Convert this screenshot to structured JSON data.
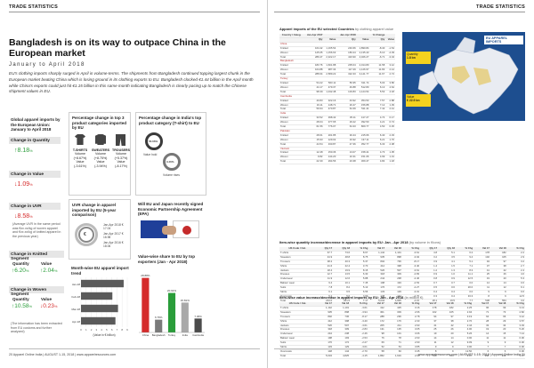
{
  "header": {
    "left": "TRADE STATISTICS",
    "right": "TRADE STATISTICS"
  },
  "article": {
    "headline": "Bangladesh is on its way to outpace China in the European market",
    "date": "January to April 2018",
    "lead": "EU's clothing imports sharply surged in April in volume-terms. The shipments from Bangladesh continued topping largest chunk in the European market beating China which is losing ground in its clothing exports to EU. Bangladesh clocked €1.44 billion in the April month while China's exports could just hit €1.15 billion in this same month indicating Bangladesh is clearly pacing up to match the Chinese shipment values in EU."
  },
  "left_panel": {
    "title": "Global apparel imports by the European Union: January to April 2018",
    "qty_label": "Change in Quantity",
    "qty_value": "8.18",
    "value_label": "Change in Value",
    "value_value": "1.09",
    "uvr_label": "Change in UVR",
    "uvr_value": "8.58",
    "uvr_note": "(Average UVR in the same period was €xx.xx/kg of woven apparel and €xx.xx/kg of knitted apparel in the previous year)",
    "knit_header": "Change in Knitted Segment",
    "knit_qty_label": "Quantity",
    "knit_value_label": "Value",
    "knit_qty": "6.20",
    "knit_value": "2.04",
    "woven_header": "Change in Woven Segment",
    "woven_qty_label": "Quantity",
    "woven_value_label": "Value",
    "woven_qty": "10.58",
    "woven_value": "0.23",
    "pct": "%",
    "source": "(The information has been extracted from EU customs and further analyzed)"
  },
  "cat_panel": {
    "title": "Percentage change in top 3 product categories imported by EU",
    "items": [
      {
        "name": "T-SHIRTS",
        "vol": "Volume (+8.67%)",
        "val": "Value (-3.61%)"
      },
      {
        "name": "SWEATERS",
        "vol": "Volume (+8.75%)",
        "val": "Value (-3.94%)"
      },
      {
        "name": "TROUSERS",
        "vol": "Volume (+5.37%)",
        "val": "Value (-8.17%)"
      }
    ]
  },
  "india_panel": {
    "title": "Percentage change in India's top product category (T-shirt) to EU",
    "value_label": "Value hold",
    "value_pct": "56.66%",
    "volume_label": "Volume rises",
    "volume_pct": "3.46%"
  },
  "uvr_panel": {
    "title": "UVR change in apparel imported by EU (5-year comparison)",
    "center": "€",
    "legend": [
      "Jan-Apr 2018 € 17.04",
      "Jan-Apr 2017 € 16.98",
      "Jan-Apr 2016 € 18.06"
    ]
  },
  "fta_panel": {
    "title": "Will EU and Japan recently signed Economic Partnership Agreement (EPA)"
  },
  "month_panel": {
    "title": "Month-wise EU apparel import trend",
    "xlabel": "(Value in € billion)",
    "months": [
      "Jan-18",
      "Feb-18",
      "Mar-18",
      "Apr-18"
    ],
    "values": [
      8.3,
      6.1,
      7.2,
      6.7
    ],
    "ticks": [
      "0",
      "1",
      "2",
      "3",
      "4",
      "5",
      "6",
      "7",
      "8",
      "9"
    ]
  },
  "share_panel": {
    "title": "Value-wise share to EU by top exporters (Jan - Apr 2018)",
    "categories": [
      "China",
      "Bangladesh",
      "Turkey",
      "India",
      "Cambodia"
    ],
    "values": [
      28.88,
      6.76,
      20.91,
      15.81,
      7.36
    ],
    "labels": [
      "28.88%",
      "6.76%",
      "20.91%",
      "15.81%",
      "7.36%"
    ]
  },
  "chart_data": [
    {
      "type": "bar",
      "title": "Month-wise EU apparel import trend",
      "categories": [
        "Jan-18",
        "Feb-18",
        "Mar-18",
        "Apr-18"
      ],
      "values": [
        8.3,
        6.1,
        7.2,
        6.7
      ],
      "xlabel": "(Value in € billion)",
      "ylabel": "",
      "xlim": [
        0,
        9
      ]
    },
    {
      "type": "bar",
      "title": "Value-wise share to EU by top exporters (Jan - Apr 2018)",
      "categories": [
        "China",
        "Bangladesh",
        "Turkey",
        "India",
        "Cambodia"
      ],
      "values": [
        28.88,
        6.76,
        20.91,
        15.81,
        7.36
      ],
      "ylabel": "",
      "ylim": [
        0,
        32
      ]
    }
  ],
  "table1": {
    "title": "Apparel imports of the EU selected Countries",
    "subtitle": "by clothing apparel value",
    "head1": [
      "Country / Categ.",
      "Jan-Apr 2017",
      "",
      "Jan-Apr 2018",
      "",
      "% Change",
      ""
    ],
    "head2": [
      "",
      "Qty",
      "Value",
      "Qty",
      "Value",
      "Qty",
      "Value"
    ],
    "rows": [
      [
        "China",
        "",
        "",
        "",
        "",
        "",
        ""
      ],
      [
        "Knitted",
        "164.42",
        "1,165.54",
        "240.66",
        "1,890.84",
        "-8.40",
        "-1.54"
      ],
      [
        "Woven",
        "125.05",
        "1,156.63",
        "183.24",
        "2,135.43",
        "-5.10",
        "-4.39"
      ],
      [
        "Total",
        "289.47",
        "2,322.17",
        "423.90",
        "4,026.27",
        "-6.71",
        "-3.04"
      ],
      [
        "Bangladesh",
        "",
        "",
        "",
        "",
        "",
        ""
      ],
      [
        "Knitted",
        "183.76",
        "1,601.88",
        "205.04",
        "2,014.80",
        "11.58",
        "3.12"
      ],
      [
        "Woven",
        "104.88",
        "987.34",
        "117.29",
        "1,126.97",
        "11.83",
        "2.14"
      ],
      [
        "Total",
        "288.64",
        "2,589.22",
        "322.33",
        "3,141.77",
        "11.67",
        "2.74"
      ],
      [
        "Turkey",
        "",
        "",
        "",
        "",
        "",
        ""
      ],
      [
        "Knitted",
        "54.22",
        "563.11",
        "56.95",
        "611.74",
        "5.03",
        "3.80"
      ],
      [
        "Woven",
        "44.17",
        "479.37",
        "46.88",
        "512.80",
        "6.13",
        "4.64"
      ],
      [
        "Total",
        "98.39",
        "1,042.48",
        "103.83",
        "1,124.54",
        "5.53",
        "4.18"
      ],
      [
        "Cambodia",
        "",
        "",
        "",
        "",
        "",
        ""
      ],
      [
        "Knitted",
        "40.83",
        "322.16",
        "43.92",
        "354.53",
        "7.57",
        "2.88"
      ],
      [
        "Woven",
        "19.11",
        "148.71",
        "20.47",
        "156.88",
        "7.12",
        "1.39"
      ],
      [
        "Total",
        "59.94",
        "470.87",
        "64.39",
        "511.41",
        "7.42",
        "2.41"
      ],
      [
        "India",
        "",
        "",
        "",
        "",
        "",
        ""
      ],
      [
        "Knitted",
        "33.52",
        "398.42",
        "35.11",
        "417.27",
        "4.74",
        "0.17"
      ],
      [
        "Woven",
        "28.04",
        "377.65",
        "29.22",
        "392.50",
        "4.21",
        "0.74"
      ],
      [
        "Total",
        "61.56",
        "776.07",
        "64.33",
        "809.77",
        "4.50",
        "0.45"
      ],
      [
        "Pakistan",
        "",
        "",
        "",
        "",
        "",
        ""
      ],
      [
        "Knitted",
        "28.61",
        "201.85",
        "30.44",
        "215.66",
        "6.40",
        "2.33"
      ],
      [
        "Woven",
        "15.93",
        "129.02",
        "16.92",
        "137.11",
        "6.21",
        "1.70"
      ],
      [
        "Total",
        "44.54",
        "330.87",
        "47.36",
        "352.77",
        "6.33",
        "2.08"
      ],
      [
        "Vietnam",
        "",
        "",
        "",
        "",
        "",
        ""
      ],
      [
        "Knitted",
        "12.48",
        "150.36",
        "13.07",
        "158.41",
        "4.73",
        "1.05"
      ],
      [
        "Woven",
        "9.82",
        "144.20",
        "10.31",
        "151.06",
        "4.99",
        "1.31"
      ],
      [
        "Total",
        "22.30",
        "294.56",
        "23.38",
        "309.47",
        "4.84",
        "1.18"
      ]
    ]
  },
  "map": {
    "title": "EU APPAREL IMPORTS",
    "subtitle": "January to April 2018",
    "stats": [
      {
        "label": "Quantity",
        "value": "1.8 bn"
      },
      {
        "label": "Value",
        "value": "€ 22.9 bn"
      }
    ]
  },
  "table2": {
    "title": "Item-wise quantity increase/decrease in apparel imports by EU: Jan - Apr 2018",
    "subtitle": "(by volume in Ktons)",
    "head": [
      "HS Code / Cat.",
      "Qty 17",
      "Qty 18",
      "% Chg",
      "Val 17",
      "Val 18",
      "% Chg",
      "Qty 17",
      "Qty 18",
      "% Chg",
      "Val 17",
      "Val 18",
      "% Chg"
    ],
    "rows": [
      [
        "T-shirts",
        "67.7",
        "73.6",
        "8.67",
        "1,142",
        "1,101",
        "-3.61",
        "4.8",
        "5.1",
        "6.2",
        "178",
        "182",
        "2.2"
      ],
      [
        "Sweaters",
        "44.9",
        "48.8",
        "8.75",
        "935",
        "898",
        "-3.94",
        "3.2",
        "3.5",
        "9.4",
        "102",
        "105",
        "2.9"
      ],
      [
        "Trousers",
        "38.2",
        "40.3",
        "5.37",
        "802",
        "736",
        "-8.17",
        "3.9",
        "4.1",
        "5.1",
        "94",
        "97",
        "3.2"
      ],
      [
        "Shirts",
        "21.6",
        "22.4",
        "3.70",
        "412",
        "398",
        "-3.40",
        "1.4",
        "1.5",
        "7.1",
        "37",
        "38",
        "2.7"
      ],
      [
        "Jackets",
        "18.4",
        "19.9",
        "8.15",
        "526",
        "507",
        "-3.61",
        "1.2",
        "1.3",
        "8.3",
        "41",
        "42",
        "2.4"
      ],
      [
        "Dresses",
        "12.7",
        "13.5",
        "6.30",
        "318",
        "309",
        "-2.83",
        "0.9",
        "1.0",
        "11.1",
        "25",
        "26",
        "4.0"
      ],
      [
        "Underwear",
        "11.9",
        "12.6",
        "5.88",
        "244",
        "238",
        "-2.46",
        "0.8",
        "0.9",
        "12.5",
        "19",
        "20",
        "5.3"
      ],
      [
        "Babies' wear",
        "9.4",
        "10.1",
        "7.45",
        "198",
        "193",
        "-2.53",
        "0.7",
        "0.7",
        "0.0",
        "14",
        "14",
        "0.0"
      ],
      [
        "Suits",
        "7.8",
        "8.2",
        "5.13",
        "176",
        "172",
        "-2.27",
        "0.5",
        "0.6",
        "20.0",
        "11",
        "12",
        "9.1"
      ],
      [
        "Skirts",
        "6.1",
        "6.5",
        "6.56",
        "133",
        "129",
        "-3.01",
        "0.4",
        "0.4",
        "0.0",
        "9",
        "9",
        "0.0"
      ],
      [
        "Overcoats",
        "5.2",
        "5.6",
        "7.69",
        "148",
        "144",
        "-2.70",
        "0.3",
        "0.4",
        "33.3",
        "8",
        "9",
        "12.5"
      ],
      [
        "Total",
        "244.0",
        "261.5",
        "7.17",
        "5,034",
        "4,825",
        "-4.15",
        "18.1",
        "19.5",
        "7.7",
        "538",
        "554",
        "3.0"
      ]
    ]
  },
  "table3": {
    "title": "Item-wise value increase/decrease in apparel imports by EU: Jan - Apr 2018",
    "subtitle": "(in million €)",
    "head": [
      "HS Code / Cat.",
      "Val 17",
      "Val 18",
      "% Chg",
      "Val 17",
      "Val 18",
      "% Chg",
      "Val 17",
      "Val 18",
      "% Chg",
      "Val 17",
      "Val 18",
      "% Chg"
    ],
    "rows": [
      [
        "T-shirts",
        "1,142",
        "1,101",
        "-3.61",
        "412",
        "425",
        "3.16",
        "178",
        "182",
        "2.25",
        "96",
        "99",
        "3.13"
      ],
      [
        "Sweaters",
        "935",
        "898",
        "-3.94",
        "301",
        "309",
        "2.66",
        "102",
        "105",
        "2.94",
        "71",
        "73",
        "2.82"
      ],
      [
        "Trousers",
        "802",
        "736",
        "-8.17",
        "288",
        "296",
        "2.78",
        "94",
        "97",
        "3.19",
        "64",
        "66",
        "3.12"
      ],
      [
        "Shirts",
        "412",
        "398",
        "-3.40",
        "172",
        "176",
        "2.33",
        "37",
        "38",
        "2.70",
        "28",
        "29",
        "3.57"
      ],
      [
        "Jackets",
        "526",
        "507",
        "-3.61",
        "205",
        "211",
        "2.93",
        "41",
        "42",
        "2.44",
        "33",
        "34",
        "3.03"
      ],
      [
        "Dresses",
        "318",
        "309",
        "-2.83",
        "131",
        "135",
        "3.05",
        "25",
        "26",
        "4.00",
        "19",
        "20",
        "5.26"
      ],
      [
        "Underwear",
        "244",
        "238",
        "-2.46",
        "98",
        "101",
        "3.06",
        "19",
        "20",
        "5.26",
        "14",
        "15",
        "7.14"
      ],
      [
        "Babies' wear",
        "198",
        "193",
        "-2.53",
        "76",
        "78",
        "2.63",
        "14",
        "14",
        "0.00",
        "11",
        "11",
        "0.00"
      ],
      [
        "Suits",
        "176",
        "172",
        "-2.27",
        "69",
        "71",
        "2.90",
        "11",
        "12",
        "9.09",
        "9",
        "9",
        "0.00"
      ],
      [
        "Skirts",
        "133",
        "129",
        "-3.01",
        "52",
        "54",
        "3.85",
        "9",
        "9",
        "0.00",
        "7",
        "7",
        "0.00"
      ],
      [
        "Overcoats",
        "148",
        "144",
        "-2.70",
        "58",
        "60",
        "3.45",
        "8",
        "9",
        "12.50",
        "6",
        "6",
        "0.00"
      ],
      [
        "Total",
        "5,034",
        "4,825",
        "-4.15",
        "1,862",
        "1,916",
        "2.90",
        "538",
        "554",
        "2.97",
        "358",
        "369",
        "3.07"
      ]
    ]
  },
  "footer": {
    "left": "20  Apparel Online India | AUGUST 1-15, 2018 | www.apparelresources.com",
    "right": "www.apparelresources.com | AUGUST 1-15, 2018 | Apparel Online India 21"
  },
  "colors": {
    "accent": "#1f5fa8",
    "red": "#d52b2b",
    "green": "#2a9d3a",
    "map_sea": "#1d4e8f"
  }
}
